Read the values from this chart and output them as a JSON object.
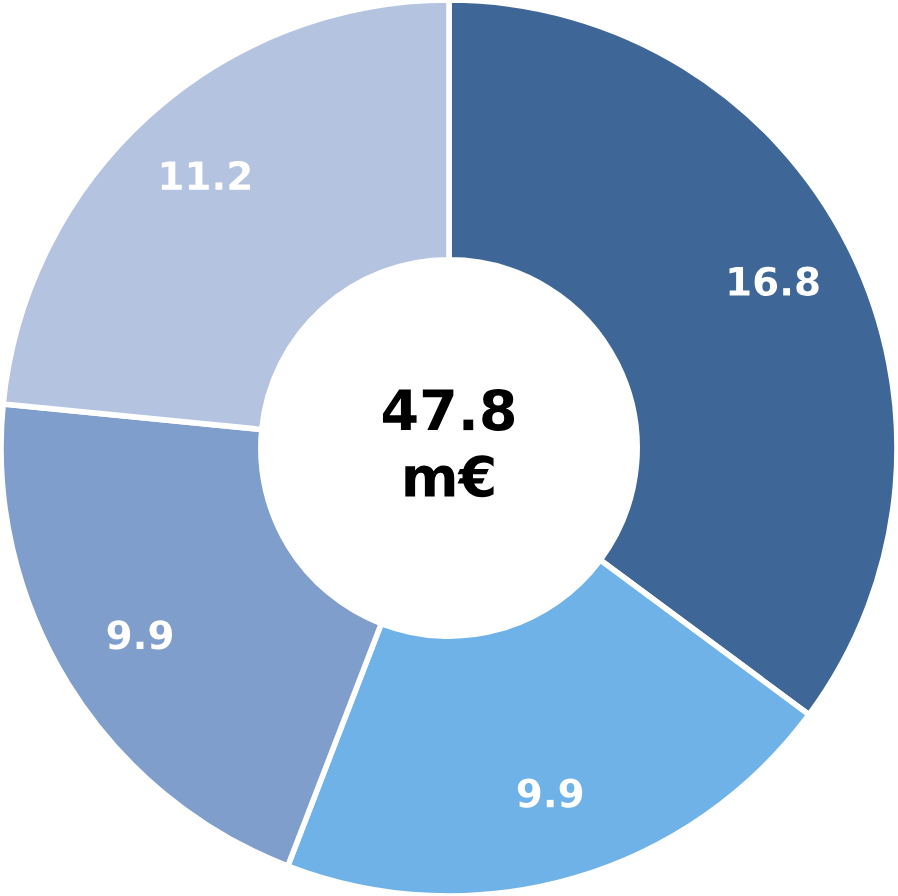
{
  "chart_data": {
    "type": "donut",
    "categories": [
      null,
      null,
      null,
      null
    ],
    "values": [
      16.8,
      9.9,
      9.9,
      11.2
    ],
    "colors": [
      "#3e6798",
      "#6fb2e8",
      "#809ecb",
      "#b4c4e0"
    ],
    "data_labels": true,
    "annotations": [
      "47.8\nm€"
    ]
  }
}
